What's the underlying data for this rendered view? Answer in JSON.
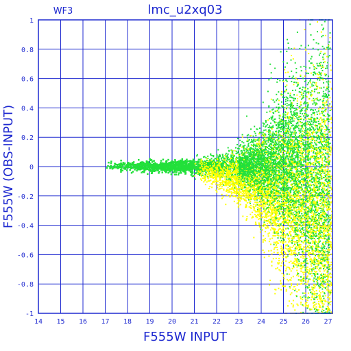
{
  "chart_data": {
    "type": "scatter",
    "title": "lmc_u2xq03",
    "panel_label": "WF3",
    "xlabel": "F555W  INPUT",
    "ylabel": "F555W  (OBS-INPUT)",
    "xlim": [
      14,
      27.2
    ],
    "ylim": [
      -1,
      1
    ],
    "x_ticks": [
      14,
      15,
      16,
      17,
      18,
      19,
      20,
      21,
      22,
      23,
      24,
      25,
      26,
      27
    ],
    "y_ticks": [
      1,
      0.8,
      0.6,
      0.4,
      0.2,
      0,
      -0.2,
      -0.4,
      -0.6,
      -0.8,
      -1
    ],
    "y_tick_labels": [
      "1",
      "0.8",
      "0.6",
      "0.4",
      "0.2",
      "0",
      "-0.2",
      "-0.4",
      "-0.6",
      "-0.8",
      "-1"
    ],
    "grid": true,
    "series": [
      {
        "color": "#22e03a",
        "points": [
          [
            17.0,
            0.01
          ],
          [
            17.5,
            0.0
          ],
          [
            18.0,
            0.02
          ],
          [
            18.5,
            -0.01
          ],
          [
            19.0,
            0.01
          ],
          [
            19.5,
            0.0
          ],
          [
            20.0,
            0.0
          ],
          [
            20.5,
            -0.01
          ],
          [
            21.0,
            0.0
          ],
          [
            21.5,
            0.02
          ],
          [
            22.0,
            0.03
          ],
          [
            22.5,
            -0.02
          ],
          [
            23.0,
            0.05
          ],
          [
            23.5,
            -0.05
          ],
          [
            24.0,
            0.1
          ],
          [
            24.5,
            0.15
          ],
          [
            25.0,
            0.25
          ],
          [
            25.3,
            0.45
          ],
          [
            25.6,
            0.6
          ],
          [
            25.8,
            0.4
          ],
          [
            26.0,
            -0.2
          ],
          [
            26.3,
            -0.5
          ],
          [
            26.6,
            -0.8
          ],
          [
            27.0,
            -0.95
          ]
        ]
      },
      {
        "color": "#ffff00",
        "points": [
          [
            21.5,
            0.0
          ],
          [
            22.0,
            -0.05
          ],
          [
            22.5,
            -0.1
          ],
          [
            23.0,
            -0.15
          ],
          [
            23.5,
            -0.2
          ],
          [
            24.0,
            -0.3
          ],
          [
            24.5,
            -0.45
          ],
          [
            25.0,
            0.1
          ],
          [
            25.5,
            0.8
          ],
          [
            25.7,
            0.95
          ],
          [
            25.2,
            -0.7
          ],
          [
            25.8,
            -0.9
          ],
          [
            26.2,
            -0.95
          ],
          [
            26.5,
            -0.6
          ]
        ]
      }
    ]
  }
}
